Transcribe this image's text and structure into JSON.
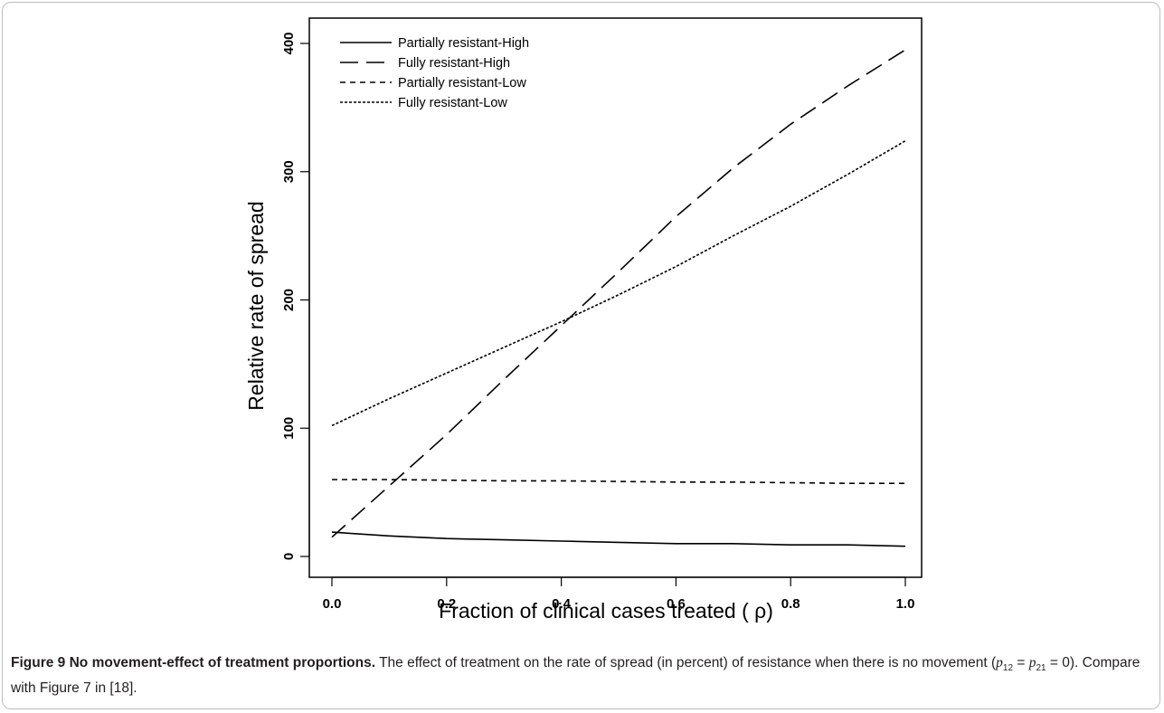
{
  "chart_data": {
    "type": "line",
    "xlabel": "Fraction of clinical cases treated ( ρ)",
    "ylabel": "Relative rate of spread",
    "xlim": [
      0.0,
      1.0
    ],
    "ylim": [
      0,
      400
    ],
    "x_ticks": [
      "0.0",
      "0.2",
      "0.4",
      "0.6",
      "0.8",
      "1.0"
    ],
    "y_ticks": [
      "0",
      "100",
      "200",
      "300",
      "400"
    ],
    "x": [
      0.0,
      0.1,
      0.2,
      0.3,
      0.4,
      0.5,
      0.6,
      0.7,
      0.8,
      0.9,
      1.0
    ],
    "grid": false,
    "legend_position": "top-left",
    "series": [
      {
        "name": "Partially resistant-High",
        "dash": "solid",
        "values": [
          19,
          16,
          14,
          13,
          12,
          11,
          10,
          10,
          9,
          9,
          8
        ]
      },
      {
        "name": "Fully resistant-High",
        "dash": "longdash",
        "values": [
          15,
          55,
          95,
          138,
          180,
          222,
          265,
          303,
          337,
          367,
          395
        ]
      },
      {
        "name": "Partially resistant-Low",
        "dash": "shortdash",
        "values": [
          60,
          60,
          59.5,
          59,
          59,
          58.5,
          58,
          58,
          57.5,
          57,
          57
        ]
      },
      {
        "name": "Fully resistant-Low",
        "dash": "dotted",
        "values": [
          102,
          123,
          143,
          163,
          183,
          204,
          226,
          250,
          273,
          298,
          324
        ]
      }
    ]
  },
  "caption": {
    "label": "Figure 9 No movement-effect of treatment proportions.",
    "text_before": " The effect of treatment on the rate of spread (in percent) of resistance when there is no movement (",
    "p12": "p",
    "p12_sub": "12",
    "eq1": " = ",
    "p21": "p",
    "p21_sub": "21",
    "eq2": " = 0). Compare with Figure 7 in [18]."
  }
}
